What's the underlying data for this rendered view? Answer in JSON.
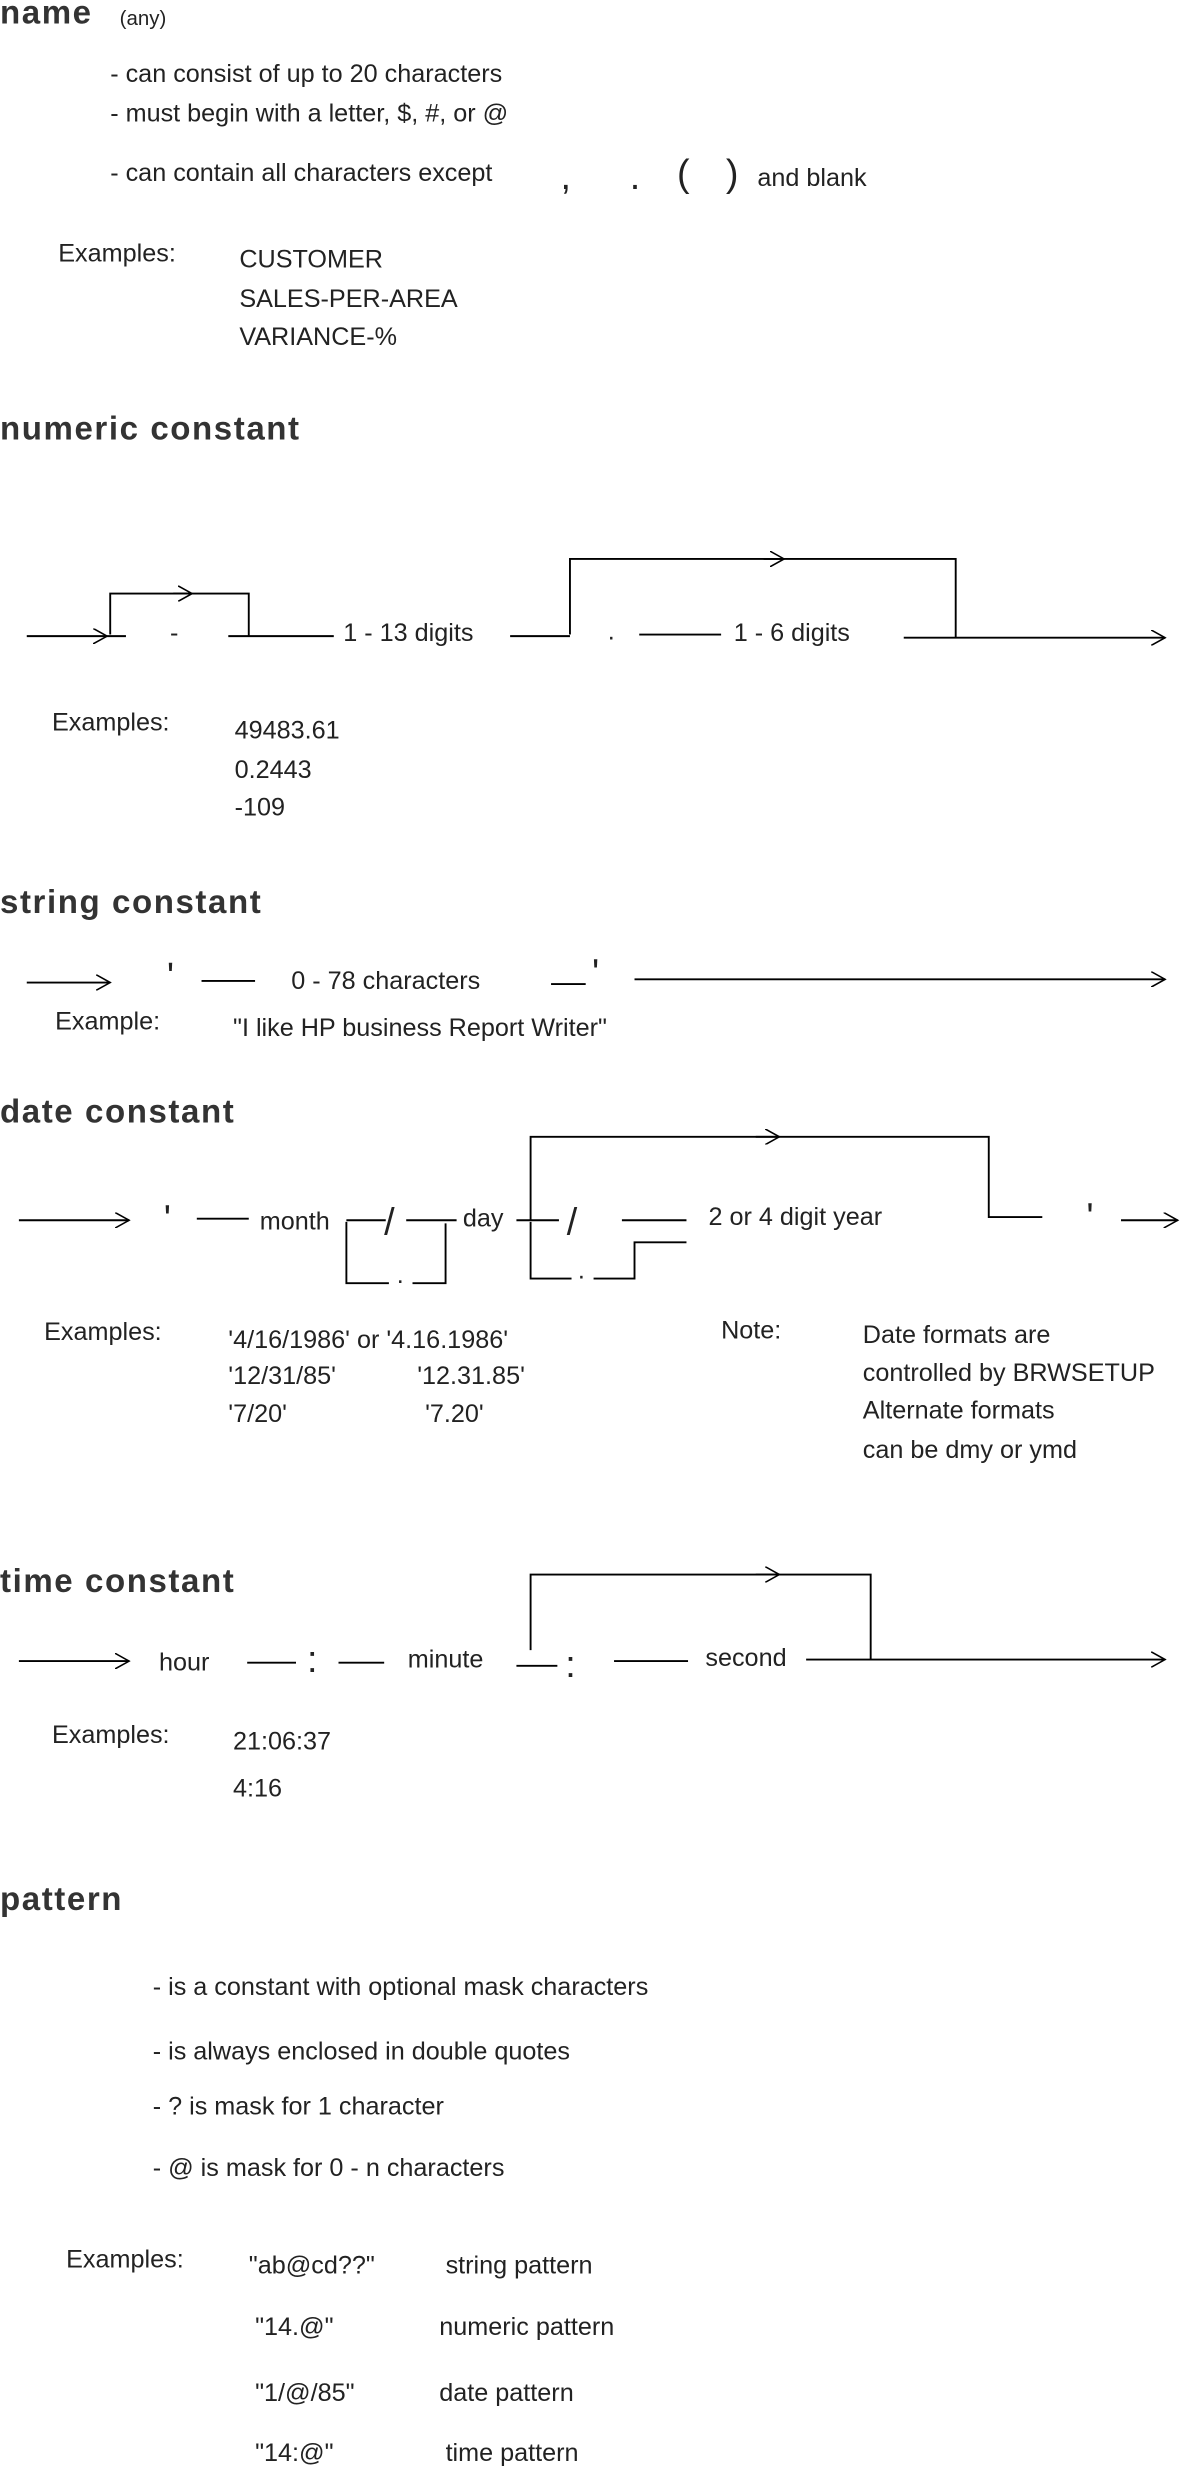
{
  "name": {
    "heading": "name",
    "qualifier": "(any)",
    "rules": [
      "- can consist of up to 20 characters",
      "- must begin with a letter, $, #, or @",
      "- can contain all characters except"
    ],
    "excluded": [
      ",",
      ".",
      "(",
      ")"
    ],
    "excluded_suffix": "and blank",
    "examples_label": "Examples:",
    "examples": [
      "CUSTOMER",
      "SALES-PER-AREA",
      "VARIANCE-%"
    ]
  },
  "numeric": {
    "heading": "numeric constant",
    "minus": "-",
    "int_digits": "1 - 13 digits",
    "point": ".",
    "frac_digits": "1 - 6 digits",
    "examples_label": "Examples:",
    "examples": [
      "49483.61",
      "0.2443",
      "-109"
    ]
  },
  "string": {
    "heading": "string constant",
    "quote": "'",
    "chars": "0 - 78 characters",
    "example_label": "Example:",
    "example": "\"I like HP business Report Writer\""
  },
  "date": {
    "heading": "date constant",
    "quote": "'",
    "month": "month",
    "slash": "/",
    "dot": ".",
    "day": "day",
    "year": "2 or 4 digit year",
    "examples_label": "Examples:",
    "examples": [
      [
        "'4/16/1986' or '4.16.1986'",
        ""
      ],
      [
        "'12/31/85'",
        "'12.31.85'"
      ],
      [
        "'7/20'",
        "'7.20'"
      ]
    ],
    "note_label": "Note:",
    "note": [
      "Date formats are",
      "controlled by BRWSETUP",
      "Alternate formats",
      "can be dmy or ymd"
    ]
  },
  "time": {
    "heading": "time constant",
    "hour": "hour",
    "colon": ":",
    "minute": "minute",
    "second": "second",
    "examples_label": "Examples:",
    "examples": [
      "21:06:37",
      "4:16"
    ]
  },
  "pattern": {
    "heading": "pattern",
    "rules": [
      "- is a constant with optional mask characters",
      "- is always enclosed in double quotes",
      "- ? is mask for 1 character",
      "- @ is mask for 0 - n characters"
    ],
    "examples_label": "Examples:",
    "examples": [
      {
        "value": "\"ab@cd??\"",
        "kind": "string pattern"
      },
      {
        "value": "\"14.@\"",
        "kind": "numeric pattern"
      },
      {
        "value": "\"1/@/85\"",
        "kind": "date pattern"
      },
      {
        "value": "\"14:@\"",
        "kind": "time pattern"
      }
    ]
  }
}
